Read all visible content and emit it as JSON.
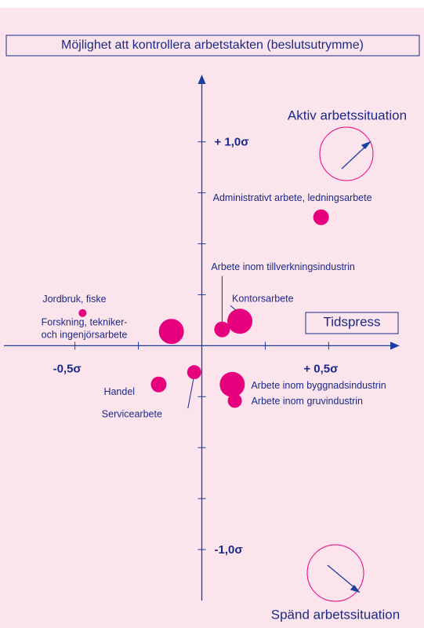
{
  "chart_data": {
    "type": "scatter",
    "y_label": "Möjlighet att kontrollera arbetstakten (beslutsutrymme)",
    "x_label": "Tidspress",
    "annotations": [
      "Aktiv arbetssituation",
      "Spänd arbetssituation"
    ],
    "xlim": [
      -0.78,
      0.78
    ],
    "ylim": [
      -1.25,
      1.33
    ],
    "xticks": [
      {
        "value": -0.5,
        "label": "-0,5σ"
      },
      {
        "value": 0.5,
        "label": "+ 0,5σ"
      }
    ],
    "yticks": [
      {
        "value": 1.0,
        "label": "+ 1,0σ"
      },
      {
        "value": -1.0,
        "label": "-1,0σ"
      }
    ],
    "xminor_ticks": [
      -0.25,
      0.25
    ],
    "yminor_ticks": [
      0.75,
      0.5,
      0.25,
      -0.25,
      -0.5,
      -0.75
    ],
    "color": "#e6007e",
    "points": [
      {
        "label": "Administrativt arbete, ledningsarbete",
        "x": 0.47,
        "y": 0.63,
        "size": 10
      },
      {
        "label": "Kontorsarbete",
        "x": 0.15,
        "y": 0.12,
        "size": 16
      },
      {
        "label": "Arbete inom tillverkningsindustrin",
        "x": 0.08,
        "y": 0.08,
        "size": 10
      },
      {
        "label": "Jordbruk, fiske",
        "x": -0.47,
        "y": 0.16,
        "size": 5
      },
      {
        "label": [
          "Forskning, tekniker-",
          "och ingenjörsarbete"
        ],
        "x": -0.12,
        "y": 0.07,
        "size": 16
      },
      {
        "label": "Servicearbete",
        "x": -0.03,
        "y": -0.13,
        "size": 9
      },
      {
        "label": "Handel",
        "x": -0.17,
        "y": -0.19,
        "size": 10
      },
      {
        "label": "Arbete inom byggnadsindustrin",
        "x": 0.12,
        "y": -0.19,
        "size": 16
      },
      {
        "label": "Arbete inom gruvindustrin",
        "x": 0.13,
        "y": -0.27,
        "size": 9
      }
    ]
  }
}
